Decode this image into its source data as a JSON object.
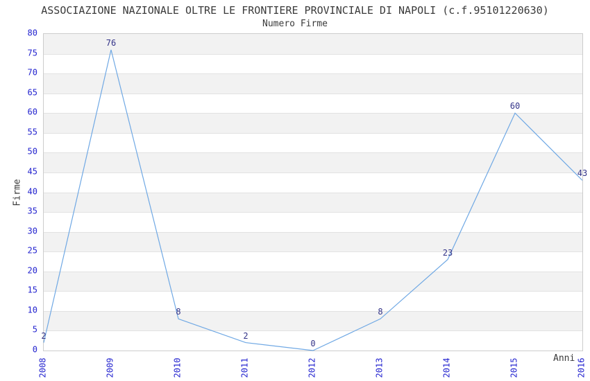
{
  "title": "ASSOCIAZIONE NAZIONALE OLTRE LE FRONTIERE PROVINCIALE DI NAPOLI (c.f.95101220630)",
  "subtitle": "Numero Firme",
  "axis": {
    "x_label": "Anni",
    "y_label": "Firme"
  },
  "chart_data": {
    "type": "line",
    "categories": [
      "2008",
      "2009",
      "2010",
      "2011",
      "2012",
      "2013",
      "2014",
      "2015",
      "2016"
    ],
    "values": [
      2,
      76,
      8,
      2,
      0,
      8,
      23,
      60,
      43
    ],
    "title": "ASSOCIAZIONE NAZIONALE OLTRE LE FRONTIERE PROVINCIALE DI NAPOLI (c.f.95101220630)",
    "subtitle": "Numero Firme",
    "xlabel": "Anni",
    "ylabel": "Firme",
    "ylim": [
      0,
      80
    ],
    "ytick_step": 5,
    "grid": "horizontal-bands-alternating",
    "legend_position": "none",
    "point_labels_visible": true
  },
  "colors": {
    "background": "#ffffff",
    "line": "#6fa8e4",
    "axis_tick_label": "#2323cf",
    "point_label": "#333388",
    "band_dark": "#f2f2f2",
    "band_light": "#ffffff",
    "grid_line": "#e2e2e2",
    "plot_border": "#cccccc",
    "title_text": "#3a3a3a"
  }
}
